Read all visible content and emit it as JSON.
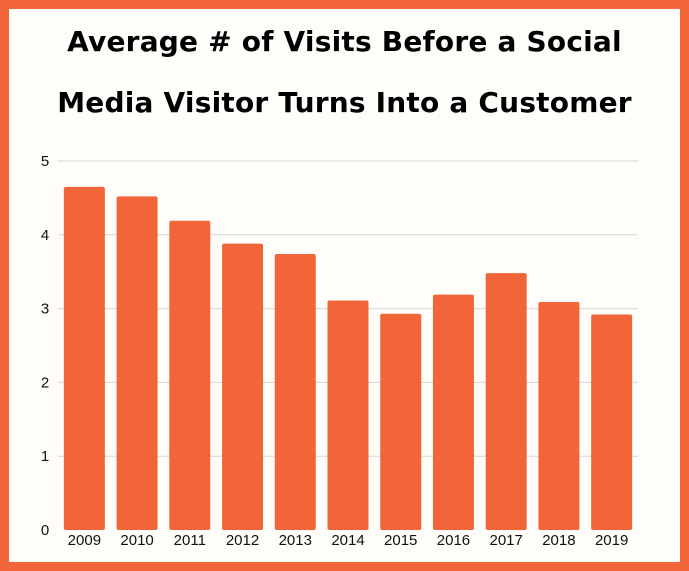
{
  "chart_data": {
    "type": "bar",
    "title_lines": [
      "Average # of Visits Before a Social",
      "Media Visitor Turns Into a Customer"
    ],
    "categories": [
      "2009",
      "2010",
      "2011",
      "2012",
      "2013",
      "2014",
      "2015",
      "2016",
      "2017",
      "2018",
      "2019"
    ],
    "values": [
      4.65,
      4.52,
      4.19,
      3.88,
      3.74,
      3.11,
      2.93,
      3.19,
      3.48,
      3.09,
      2.92
    ],
    "xlabel": "",
    "ylabel": "",
    "ylim": [
      0,
      5
    ],
    "yticks": [
      "0",
      "1",
      "2",
      "3",
      "4",
      "5"
    ],
    "grid": true,
    "legend": "none",
    "colors": {
      "bar": "#f26539",
      "frame": "#f26539",
      "background": "#fffdf9",
      "gridline": "#d6d6d6"
    }
  }
}
